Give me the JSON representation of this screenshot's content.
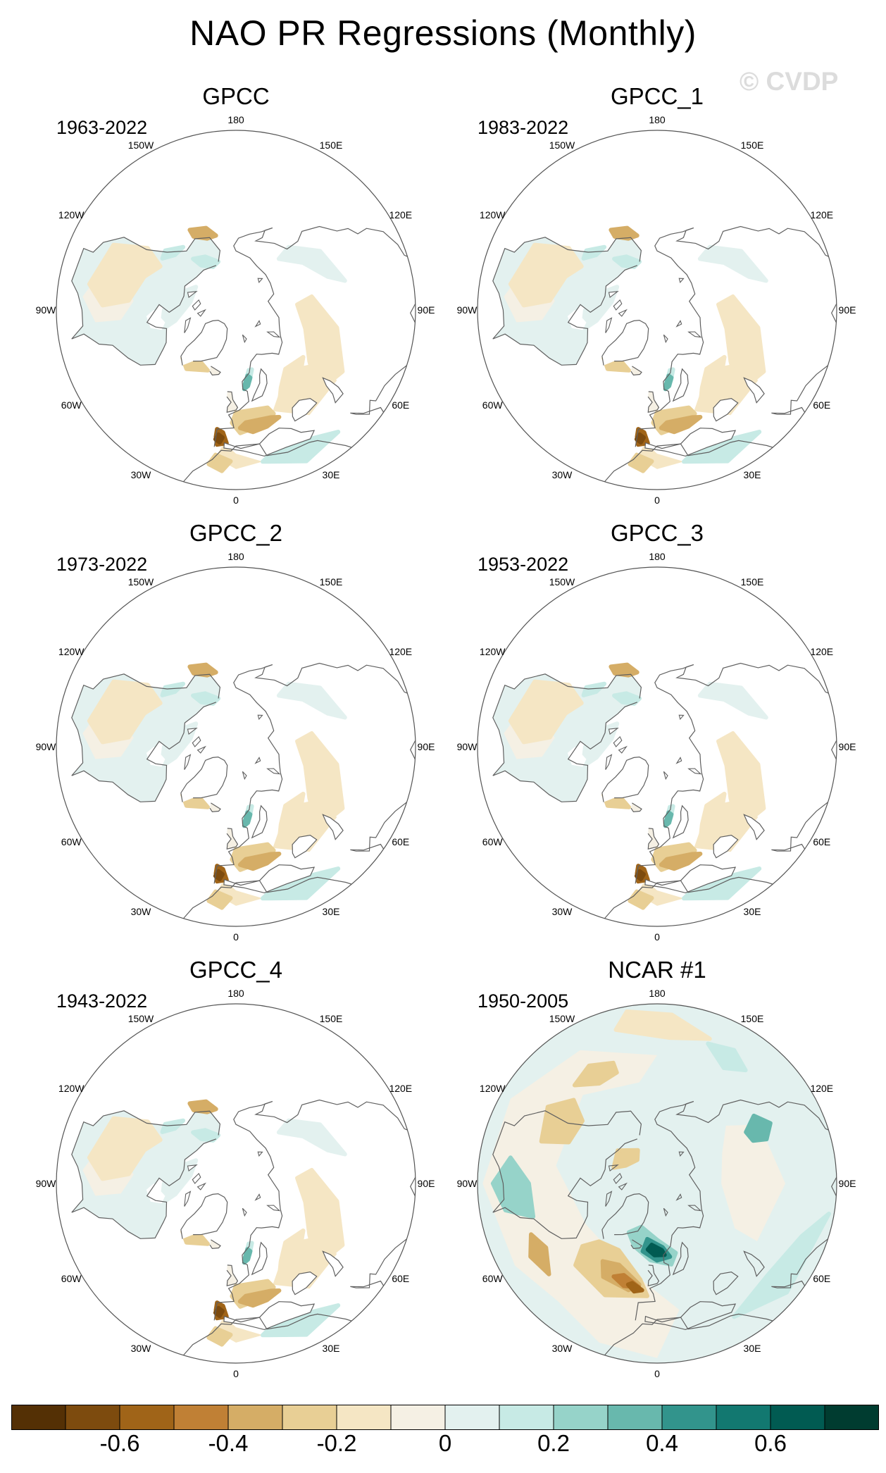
{
  "figure": {
    "title": "NAO PR Regressions (Monthly)",
    "watermark": "© CVDP"
  },
  "lon_labels": [
    "180",
    "150E",
    "120E",
    "90E",
    "60E",
    "30E",
    "0",
    "30W",
    "60W",
    "90W",
    "120W",
    "150W"
  ],
  "panels": [
    {
      "name": "GPCC",
      "years": "1963-2022",
      "variant": "obs"
    },
    {
      "name": "GPCC_1",
      "years": "1983-2022",
      "variant": "obs"
    },
    {
      "name": "GPCC_2",
      "years": "1973-2022",
      "variant": "obs"
    },
    {
      "name": "GPCC_3",
      "years": "1953-2022",
      "variant": "obs"
    },
    {
      "name": "GPCC_4",
      "years": "1943-2022",
      "variant": "obs"
    },
    {
      "name": "NCAR #1",
      "years": "1950-2005",
      "variant": "model"
    }
  ],
  "colorbar": {
    "colors": [
      "#543005",
      "#7d4b0e",
      "#a06418",
      "#c08035",
      "#d5ad66",
      "#e8cf95",
      "#f5e6c4",
      "#f5f0e4",
      "#e3f1ef",
      "#c7eae5",
      "#96d3c9",
      "#68b8ad",
      "#32948c",
      "#127870",
      "#015b52",
      "#003c30"
    ],
    "tick_labels": [
      "-0.6",
      "-0.4",
      "-0.2",
      "0",
      "0.2",
      "0.4",
      "0.6"
    ],
    "tick_values": [
      -0.6,
      -0.4,
      -0.2,
      0,
      0.2,
      0.4,
      0.6
    ],
    "range": [
      -0.8,
      0.8
    ]
  }
}
